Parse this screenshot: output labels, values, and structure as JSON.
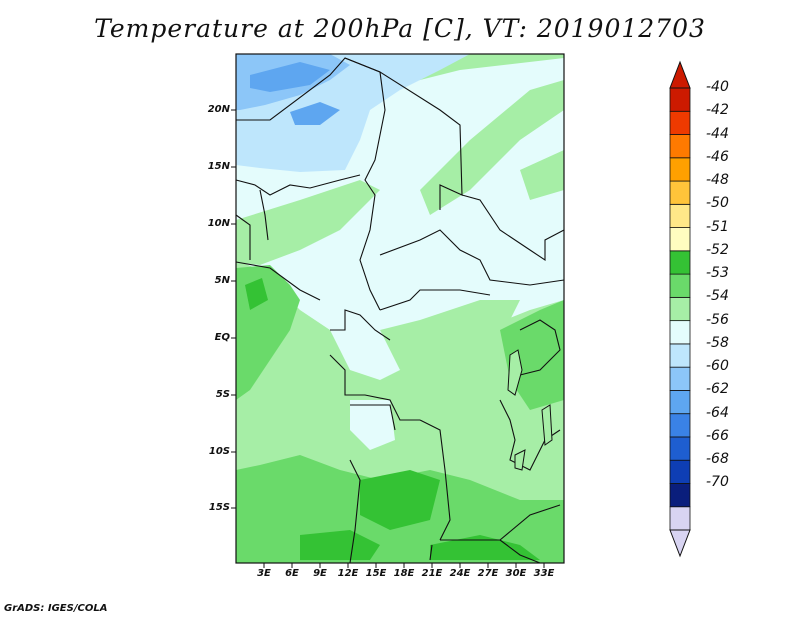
{
  "title": "Temperature at 200hPa [C], VT: 2019012703",
  "credit": "GrADS: IGES/COLA",
  "lat_ticks": [
    "20N",
    "15N",
    "10N",
    "5N",
    "EQ",
    "5S",
    "10S",
    "15S"
  ],
  "lon_ticks": [
    "3E",
    "6E",
    "9E",
    "12E",
    "15E",
    "18E",
    "21E",
    "24E",
    "27E",
    "30E",
    "33E"
  ],
  "colorbar": {
    "labels": [
      "-40",
      "-42",
      "-44",
      "-46",
      "-48",
      "-50",
      "-51",
      "-52",
      "-53",
      "-54",
      "-56",
      "-58",
      "-60",
      "-62",
      "-64",
      "-66",
      "-68",
      "-70"
    ],
    "colors": [
      "#cc1a00",
      "#ee3a00",
      "#ff7a00",
      "#ffa000",
      "#ffc43a",
      "#ffe888",
      "#fffcc0",
      "#34c234",
      "#6ada6a",
      "#a6eea6",
      "#e4fcfc",
      "#bee6fc",
      "#8cc6f8",
      "#5ea6f0",
      "#3a82e6",
      "#1e5ed0",
      "#0e3eb4",
      "#0a1e7c",
      "#d8d4f2"
    ],
    "top_triangle_color": "#cc1a00",
    "bottom_triangle_color": "#d8d4f2"
  },
  "map": {
    "fields": {
      "light_green": "#a6eea6",
      "mid_green": "#6ada6a",
      "dark_green": "#34c234",
      "very_light_cyan": "#e4fcfc",
      "light_blue": "#bee6fc",
      "mid_blue": "#8cc6f8",
      "blue": "#5ea6f0"
    }
  }
}
